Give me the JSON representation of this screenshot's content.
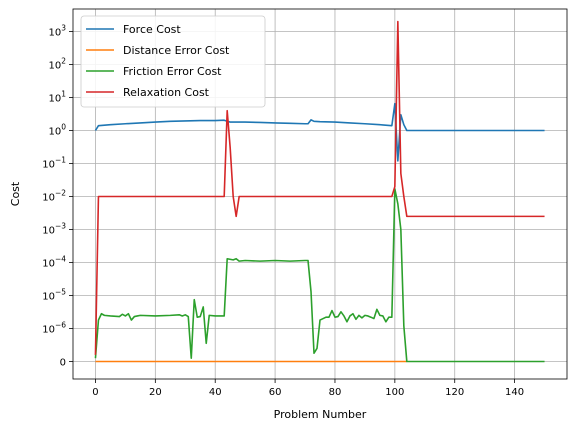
{
  "chart_data": {
    "type": "line",
    "xlabel": "Problem Number",
    "ylabel": "Cost",
    "xlim": [
      -7.5,
      157.5
    ],
    "x_ticks": [
      0,
      20,
      40,
      60,
      80,
      100,
      120,
      140
    ],
    "y_scale": "symlog",
    "y_scale_linthresh": 1e-06,
    "y_ticks": [
      {
        "value": 0,
        "label": "0"
      },
      {
        "value": 1e-06,
        "label": "10",
        "exp": "−6"
      },
      {
        "value": 1e-05,
        "label": "10",
        "exp": "−5"
      },
      {
        "value": 0.0001,
        "label": "10",
        "exp": "−4"
      },
      {
        "value": 0.001,
        "label": "10",
        "exp": "−3"
      },
      {
        "value": 0.01,
        "label": "10",
        "exp": "−2"
      },
      {
        "value": 0.1,
        "label": "10",
        "exp": "−1"
      },
      {
        "value": 1,
        "label": "10",
        "exp": "0"
      },
      {
        "value": 10,
        "label": "10",
        "exp": "1"
      },
      {
        "value": 100,
        "label": "10",
        "exp": "2"
      },
      {
        "value": 1000,
        "label": "10",
        "exp": "3"
      }
    ],
    "grid": true,
    "legend_position": "top-left",
    "series": [
      {
        "name": "Force Cost",
        "color": "#1f77b4",
        "points": [
          [
            0,
            1.0
          ],
          [
            1,
            1.4
          ],
          [
            5,
            1.5
          ],
          [
            10,
            1.6
          ],
          [
            15,
            1.7
          ],
          [
            20,
            1.8
          ],
          [
            25,
            1.9
          ],
          [
            30,
            1.95
          ],
          [
            35,
            2.0
          ],
          [
            40,
            2.0
          ],
          [
            43,
            2.05
          ],
          [
            44,
            1.9
          ],
          [
            45,
            1.8
          ],
          [
            50,
            1.8
          ],
          [
            55,
            1.75
          ],
          [
            60,
            1.7
          ],
          [
            65,
            1.65
          ],
          [
            70,
            1.6
          ],
          [
            71,
            1.6
          ],
          [
            72,
            2.1
          ],
          [
            73,
            1.9
          ],
          [
            75,
            1.85
          ],
          [
            80,
            1.8
          ],
          [
            85,
            1.7
          ],
          [
            90,
            1.6
          ],
          [
            95,
            1.5
          ],
          [
            99,
            1.4
          ],
          [
            100,
            6.5
          ],
          [
            101,
            0.12
          ],
          [
            102,
            3.0
          ],
          [
            103,
            1.5
          ],
          [
            104,
            1.0
          ],
          [
            110,
            1.0
          ],
          [
            120,
            1.0
          ],
          [
            130,
            1.0
          ],
          [
            140,
            1.0
          ],
          [
            150,
            1.0
          ]
        ]
      },
      {
        "name": "Distance Error Cost",
        "color": "#ff7f0e",
        "points": [
          [
            0,
            0
          ],
          [
            104,
            0
          ]
        ]
      },
      {
        "name": "Friction Error Cost",
        "color": "#2ca02c",
        "points": [
          [
            0,
            1e-07
          ],
          [
            1,
            1.8e-06
          ],
          [
            2,
            2.8e-06
          ],
          [
            3,
            2.5e-06
          ],
          [
            5,
            2.4e-06
          ],
          [
            8,
            2.3e-06
          ],
          [
            9,
            2.7e-06
          ],
          [
            10,
            2.4e-06
          ],
          [
            11,
            2.8e-06
          ],
          [
            12,
            1.8e-06
          ],
          [
            13,
            2.3e-06
          ],
          [
            14,
            2.4e-06
          ],
          [
            15,
            2.5e-06
          ],
          [
            20,
            2.4e-06
          ],
          [
            25,
            2.5e-06
          ],
          [
            28,
            2.6e-06
          ],
          [
            29,
            2.4e-06
          ],
          [
            30,
            2.6e-06
          ],
          [
            31,
            2.3e-06
          ],
          [
            32,
            1e-07
          ],
          [
            33,
            7.5e-06
          ],
          [
            34,
            2.2e-06
          ],
          [
            35,
            2.3e-06
          ],
          [
            36,
            4.5e-06
          ],
          [
            37,
            5.5e-07
          ],
          [
            38,
            2.5e-06
          ],
          [
            40,
            2.4e-06
          ],
          [
            41,
            2.4e-06
          ],
          [
            42,
            2.4e-06
          ],
          [
            43,
            2.4e-06
          ],
          [
            44,
            0.00013
          ],
          [
            46,
            0.00012
          ],
          [
            47,
            0.00013
          ],
          [
            48,
            0.00011
          ],
          [
            50,
            0.000115
          ],
          [
            55,
            0.00011
          ],
          [
            60,
            0.000115
          ],
          [
            65,
            0.00011
          ],
          [
            70,
            0.000115
          ],
          [
            71,
            0.000115
          ],
          [
            72,
            1.3e-05
          ],
          [
            73,
            2.5e-07
          ],
          [
            74,
            4e-07
          ],
          [
            75,
            1.8e-06
          ],
          [
            77,
            2.2e-06
          ],
          [
            78,
            2.2e-06
          ],
          [
            79,
            3.5e-06
          ],
          [
            80,
            2.2e-06
          ],
          [
            81,
            2.3e-06
          ],
          [
            82,
            3.2e-06
          ],
          [
            83,
            2.4e-06
          ],
          [
            84,
            1.6e-06
          ],
          [
            85,
            2.4e-06
          ],
          [
            86,
            2.8e-06
          ],
          [
            87,
            1.9e-06
          ],
          [
            88,
            2.5e-06
          ],
          [
            89,
            2.1e-06
          ],
          [
            90,
            2.5e-06
          ],
          [
            91,
            2.4e-06
          ],
          [
            92,
            2.2e-06
          ],
          [
            93,
            2e-06
          ],
          [
            94,
            3.8e-06
          ],
          [
            95,
            2.5e-06
          ],
          [
            96,
            2.4e-06
          ],
          [
            97,
            1.6e-06
          ],
          [
            98,
            2.2e-06
          ],
          [
            99,
            2.2e-06
          ],
          [
            100,
            0.017
          ],
          [
            101,
            0.006
          ],
          [
            102,
            0.001
          ],
          [
            103,
            1.2e-06
          ],
          [
            104,
            0
          ],
          [
            110,
            0
          ],
          [
            120,
            0
          ],
          [
            130,
            0
          ],
          [
            140,
            0
          ],
          [
            150,
            0
          ]
        ]
      },
      {
        "name": "Relaxation Cost",
        "color": "#d62728",
        "points": [
          [
            0,
            2e-07
          ],
          [
            1,
            0.01
          ],
          [
            5,
            0.01
          ],
          [
            10,
            0.01
          ],
          [
            20,
            0.01
          ],
          [
            30,
            0.01
          ],
          [
            40,
            0.01
          ],
          [
            43,
            0.01
          ],
          [
            44,
            4.0
          ],
          [
            45,
            0.3
          ],
          [
            46,
            0.01
          ],
          [
            47,
            0.0025
          ],
          [
            48,
            0.01
          ],
          [
            50,
            0.01
          ],
          [
            60,
            0.01
          ],
          [
            70,
            0.01
          ],
          [
            80,
            0.01
          ],
          [
            90,
            0.01
          ],
          [
            99,
            0.01
          ],
          [
            100,
            0.02
          ],
          [
            101,
            2000
          ],
          [
            102,
            0.05
          ],
          [
            103,
            0.01
          ],
          [
            104,
            0.0025
          ],
          [
            110,
            0.0025
          ],
          [
            120,
            0.0025
          ],
          [
            130,
            0.0025
          ],
          [
            140,
            0.0025
          ],
          [
            150,
            0.0025
          ]
        ]
      }
    ]
  }
}
